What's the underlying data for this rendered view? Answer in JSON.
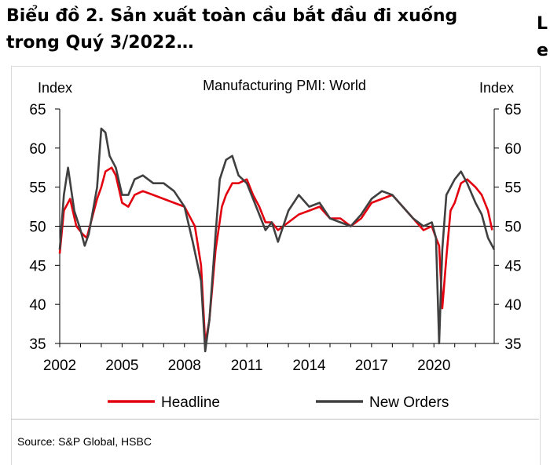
{
  "header": {
    "title_line1": "Biểu đồ 2. Sản xuất toàn cầu bắt đầu đi xuống",
    "title_line2": "trong Quý 3/2022…",
    "edge_fragment": "L e"
  },
  "chart_data": {
    "type": "line",
    "title": "Manufacturing  PMI: World",
    "ylabel_left": "Index",
    "ylabel_right": "Index",
    "x_range": [
      2002,
      2022.9
    ],
    "ylim": [
      35,
      65
    ],
    "yticks": [
      35,
      40,
      45,
      50,
      55,
      60,
      65
    ],
    "xtick_labels": [
      "2002",
      "2005",
      "2008",
      "2011",
      "2014",
      "2017",
      "2020"
    ],
    "xtick_values": [
      2002,
      2005,
      2008,
      2011,
      2014,
      2017,
      2020
    ],
    "reference_line": 50,
    "grid": false,
    "legend_position": "bottom",
    "series": [
      {
        "name": "Headline",
        "color": "#e3000f",
        "x": [
          2002.0,
          2002.2,
          2002.5,
          2002.8,
          2003.1,
          2003.3,
          2003.5,
          2003.8,
          2004.0,
          2004.2,
          2004.5,
          2004.7,
          2005.0,
          2005.3,
          2005.6,
          2006.0,
          2006.5,
          2007.0,
          2007.5,
          2008.0,
          2008.5,
          2008.8,
          2009.0,
          2009.2,
          2009.5,
          2009.8,
          2010.0,
          2010.3,
          2010.6,
          2011.0,
          2011.3,
          2011.6,
          2011.9,
          2012.2,
          2012.5,
          2013.0,
          2013.5,
          2014.0,
          2014.5,
          2015.0,
          2015.5,
          2016.0,
          2016.5,
          2017.0,
          2017.5,
          2018.0,
          2018.5,
          2019.0,
          2019.5,
          2019.9,
          2020.1,
          2020.25,
          2020.4,
          2020.6,
          2020.8,
          2021.0,
          2021.3,
          2021.6,
          2022.0,
          2022.3,
          2022.6,
          2022.8
        ],
        "y": [
          46.5,
          52.0,
          53.5,
          50.0,
          49.0,
          48.5,
          50.5,
          53.5,
          55.0,
          57.0,
          57.5,
          56.5,
          53.0,
          52.5,
          54.0,
          54.5,
          54.0,
          53.5,
          53.0,
          52.5,
          50.0,
          45.0,
          35.0,
          38.0,
          47.0,
          52.5,
          54.0,
          55.5,
          55.5,
          56.0,
          54.0,
          52.5,
          50.5,
          50.5,
          49.5,
          50.5,
          51.5,
          52.0,
          52.5,
          51.0,
          51.0,
          50.0,
          51.0,
          53.0,
          53.5,
          54.0,
          52.5,
          51.0,
          49.5,
          50.0,
          48.5,
          47.5,
          39.5,
          46.0,
          52.0,
          53.0,
          55.5,
          56.0,
          55.0,
          54.0,
          52.0,
          49.5
        ]
      },
      {
        "name": "New Orders",
        "color": "#404040",
        "x": [
          2002.0,
          2002.2,
          2002.4,
          2002.7,
          2003.0,
          2003.2,
          2003.4,
          2003.6,
          2003.8,
          2004.0,
          2004.2,
          2004.4,
          2004.7,
          2005.0,
          2005.3,
          2005.6,
          2006.0,
          2006.5,
          2007.0,
          2007.5,
          2008.0,
          2008.4,
          2008.8,
          2009.0,
          2009.2,
          2009.5,
          2009.7,
          2010.0,
          2010.3,
          2010.6,
          2011.0,
          2011.3,
          2011.6,
          2011.9,
          2012.2,
          2012.5,
          2013.0,
          2013.5,
          2014.0,
          2014.5,
          2015.0,
          2015.5,
          2016.0,
          2016.5,
          2017.0,
          2017.5,
          2018.0,
          2018.5,
          2019.0,
          2019.5,
          2019.9,
          2020.1,
          2020.25,
          2020.4,
          2020.6,
          2020.8,
          2021.0,
          2021.3,
          2021.6,
          2022.0,
          2022.3,
          2022.6,
          2022.9
        ],
        "y": [
          47.0,
          54.0,
          57.5,
          52.0,
          49.5,
          47.5,
          49.0,
          52.0,
          55.0,
          62.5,
          62.0,
          59.0,
          57.5,
          54.0,
          54.0,
          56.0,
          56.5,
          55.5,
          55.5,
          54.5,
          52.5,
          48.0,
          43.0,
          34.0,
          38.0,
          49.0,
          56.0,
          58.5,
          59.0,
          56.5,
          55.5,
          53.5,
          51.5,
          49.5,
          50.5,
          48.0,
          52.0,
          54.0,
          52.5,
          53.0,
          51.0,
          50.5,
          50.0,
          51.5,
          53.5,
          54.5,
          54.0,
          52.5,
          51.0,
          50.0,
          50.5,
          48.5,
          35.0,
          47.0,
          54.0,
          55.0,
          56.0,
          57.0,
          55.5,
          53.0,
          51.5,
          48.5,
          47.0
        ]
      }
    ],
    "source": "Source: S&P Global, HSBC"
  }
}
